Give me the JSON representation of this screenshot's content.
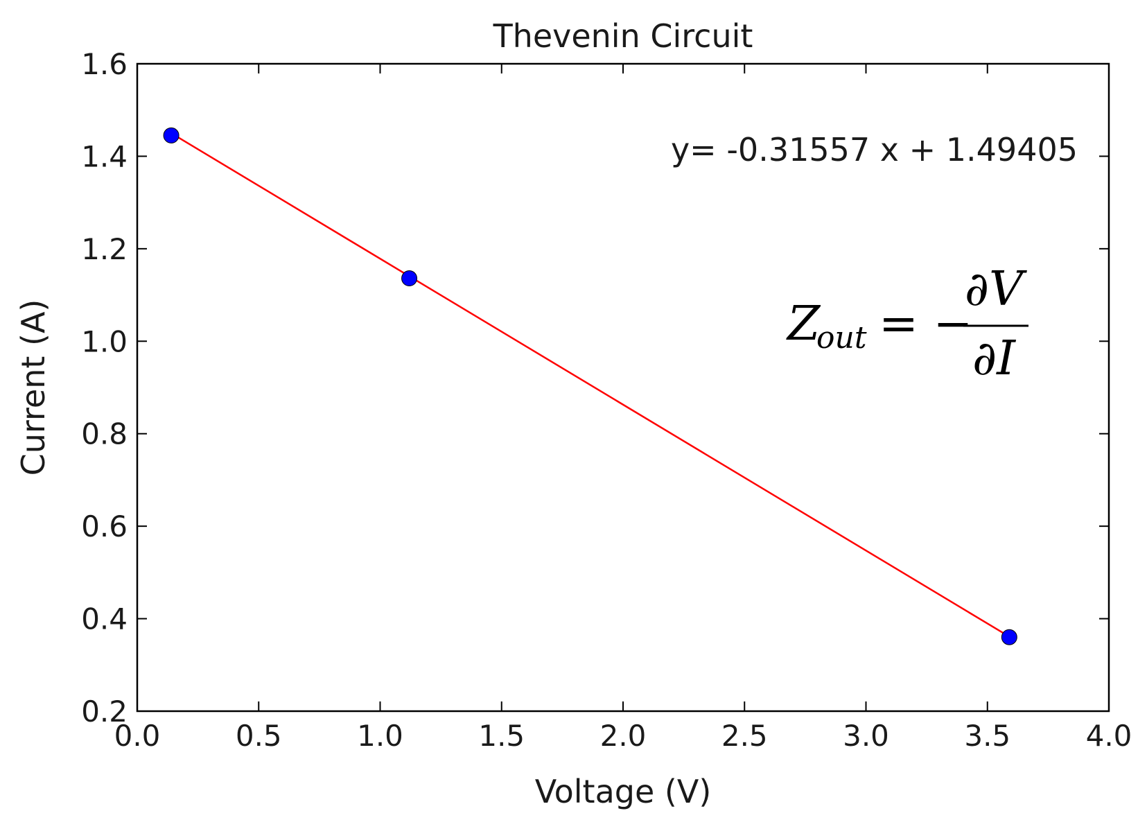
{
  "chart_data": {
    "type": "scatter",
    "title": "Thevenin Circuit",
    "xlabel": "Voltage (V)",
    "ylabel": "Current (A)",
    "xlim": [
      0.0,
      4.0
    ],
    "ylim": [
      0.2,
      1.6
    ],
    "xticks": [
      "0.0",
      "0.5",
      "1.0",
      "1.5",
      "2.0",
      "2.5",
      "3.0",
      "3.5",
      "4.0"
    ],
    "yticks": [
      "0.2",
      "0.4",
      "0.6",
      "0.8",
      "1.0",
      "1.2",
      "1.4",
      "1.6"
    ],
    "grid": false,
    "points": {
      "x": [
        0.14,
        1.12,
        3.59
      ],
      "y": [
        1.445,
        1.136,
        0.36
      ],
      "color": "#0000ff"
    },
    "fit": {
      "slope": -0.31557,
      "intercept": 1.49405,
      "x_range": [
        0.14,
        3.59
      ],
      "color": "#ff0000"
    },
    "annotations": {
      "equation": "y= -0.31557 x + 1.49405",
      "formula_lhs": "Z",
      "formula_sub": "out",
      "formula_eq": "= −",
      "formula_num": "∂V",
      "formula_den": "∂I"
    }
  }
}
